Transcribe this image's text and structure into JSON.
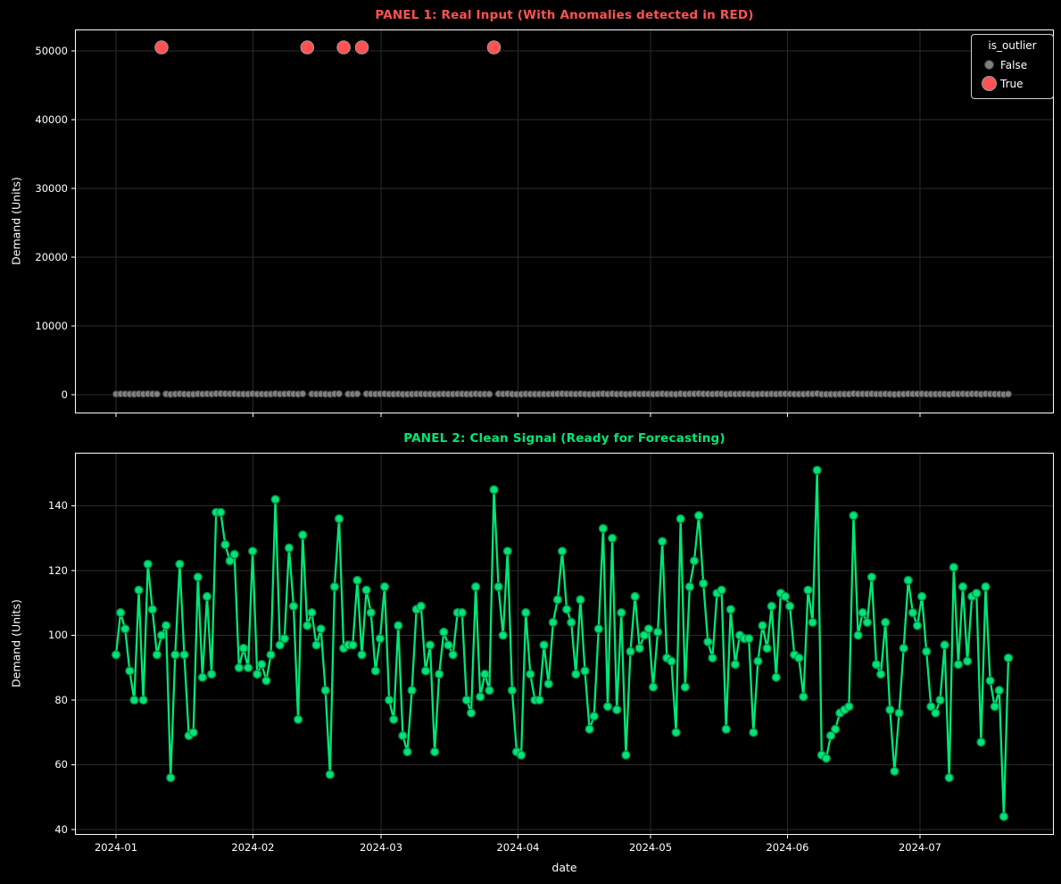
{
  "colors": {
    "background": "#000000",
    "axis_line": "#ffffff",
    "grid_line": "#2b2b2b",
    "tick_label": "#ffffff",
    "anomaly_red": "#ff5252",
    "anomaly_edge": "#9a9a9a",
    "normal_gray": "#7f7f7f",
    "gray_edge": "#3a3a3a",
    "clean_green": "#00e676",
    "green_edge": "#008f4c",
    "legend_border": "#cfcfcf"
  },
  "panel1": {
    "title": "PANEL 1: Real Input (With Anomalies detected in RED)",
    "title_color": "#ff5252",
    "ylabel": "Demand (Units)",
    "ytick_labels": [
      "0",
      "10000",
      "20000",
      "30000",
      "40000",
      "50000"
    ],
    "legend": {
      "title": "is_outlier",
      "items": [
        {
          "label": "False",
          "color": "#7f7f7f"
        },
        {
          "label": "True",
          "color": "#ff5252"
        }
      ]
    }
  },
  "panel2": {
    "title": "PANEL 2: Clean Signal (Ready for Forecasting)",
    "title_color": "#00e676",
    "ylabel": "Demand (Units)",
    "xlabel": "date",
    "ytick_labels": [
      "40",
      "60",
      "80",
      "100",
      "120",
      "140"
    ]
  },
  "x_axis": {
    "tick_labels": [
      "2024-01",
      "2024-02",
      "2024-03",
      "2024-04",
      "2024-05",
      "2024-06",
      "2024-07"
    ],
    "tick_day_offsets": [
      0,
      31,
      60,
      91,
      121,
      152,
      182
    ]
  },
  "chart_data": [
    {
      "panel": 1,
      "type": "scatter",
      "title": "PANEL 1: Real Input (With Anomalies detected in RED)",
      "x_start_date": "2024-01-01",
      "x_frequency": "daily",
      "ylabel": "Demand (Units)",
      "ylim": [
        -2700,
        53100
      ],
      "yticks": [
        0,
        10000,
        20000,
        30000,
        40000,
        50000
      ],
      "grid": true,
      "legend_title": "is_outlier",
      "legend_position": "upper right",
      "series": [
        {
          "name": "False",
          "marker_color": "#7f7f7f",
          "marker_size": "small",
          "values_source": "same daily demand values as panel 2 (70-150 range, hugging the 0 line at this scale)"
        },
        {
          "name": "True",
          "marker_color": "#ff5252",
          "marker_size": "large",
          "day_indices": [
            10,
            42,
            50,
            54,
            83
          ],
          "dates_approx": [
            "2024-01-11",
            "2024-02-12",
            "2024-02-20",
            "2024-02-24",
            "2024-03-27"
          ],
          "value_approx": 50500
        }
      ]
    },
    {
      "panel": 2,
      "type": "line",
      "title": "PANEL 2: Clean Signal (Ready for Forecasting)",
      "x_start_date": "2024-01-01",
      "x_frequency": "daily",
      "xlabel": "date",
      "ylabel": "Demand (Units)",
      "ylim": [
        38,
        157
      ],
      "yticks": [
        40,
        60,
        80,
        100,
        120,
        140
      ],
      "grid": true,
      "line_color": "#00e676",
      "marker": "circle",
      "values": [
        94,
        107,
        102,
        89,
        80,
        114,
        80,
        122,
        108,
        94,
        100,
        103,
        56,
        94,
        122,
        94,
        69,
        70,
        118,
        87,
        112,
        88,
        138,
        138,
        128,
        123,
        125,
        90,
        96,
        90,
        126,
        88,
        91,
        86,
        94,
        142,
        97,
        99,
        127,
        109,
        74,
        131,
        103,
        107,
        97,
        102,
        83,
        57,
        115,
        136,
        96,
        97,
        97,
        117,
        94,
        114,
        107,
        89,
        99,
        115,
        80,
        74,
        103,
        69,
        64,
        83,
        108,
        109,
        89,
        97,
        64,
        88,
        101,
        97,
        94,
        107,
        107,
        80,
        76,
        115,
        81,
        88,
        83,
        145,
        115,
        100,
        126,
        83,
        64,
        63,
        107,
        88,
        80,
        80,
        97,
        85,
        104,
        111,
        126,
        108,
        104,
        88,
        111,
        89,
        71,
        75,
        102,
        133,
        78,
        130,
        77,
        107,
        63,
        95,
        112,
        96,
        100,
        102,
        84,
        101,
        129,
        93,
        92,
        70,
        136,
        84,
        115,
        123,
        137,
        116,
        98,
        93,
        113,
        114,
        71,
        108,
        91,
        100,
        99,
        99,
        70,
        92,
        103,
        96,
        109,
        87,
        113,
        112,
        109,
        94,
        93,
        81,
        114,
        104,
        151,
        63,
        62,
        69,
        71,
        76,
        77,
        78,
        137,
        100,
        107,
        104,
        118,
        91,
        88,
        104,
        77,
        58,
        76,
        96,
        117,
        107,
        103,
        112,
        95,
        78,
        76,
        80,
        97,
        56,
        121,
        91,
        115,
        92,
        112,
        113,
        67,
        115,
        86,
        78,
        83,
        44,
        93
      ]
    }
  ]
}
